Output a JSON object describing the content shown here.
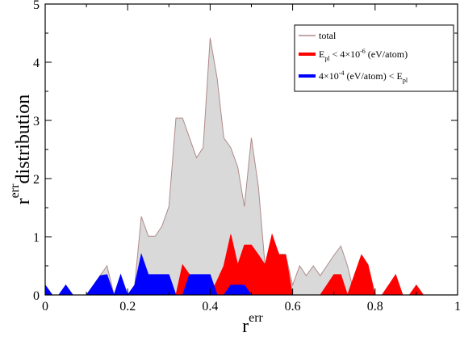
{
  "chart_data": {
    "type": "area",
    "xlabel": "r",
    "xlabel_sup": "err",
    "ylabel_main": "distribution",
    "ylabel_r": "r",
    "ylabel_sup": "err",
    "xlim": [
      0,
      1
    ],
    "ylim": [
      0,
      5
    ],
    "xticks": [
      "0",
      "0.2",
      "0.4",
      "0.6",
      "0.8",
      "1"
    ],
    "yticks": [
      "0",
      "1",
      "2",
      "3",
      "4",
      "5"
    ],
    "grid": false,
    "legend_position": "top-right",
    "legend": [
      {
        "id": "total",
        "parts": [
          {
            "t": "total",
            "s": "normal"
          }
        ]
      },
      {
        "id": "red",
        "parts": [
          {
            "t": "E",
            "s": "normal"
          },
          {
            "t": "pl",
            "s": "sub"
          },
          {
            "t": " < 4×10",
            "s": "normal"
          },
          {
            "t": "-6",
            "s": "sup"
          },
          {
            "t": " (eV/atom)",
            "s": "normal"
          }
        ]
      },
      {
        "id": "blue",
        "parts": [
          {
            "t": "4×10",
            "s": "normal"
          },
          {
            "t": "-4",
            "s": "sup"
          },
          {
            "t": " (eV/atom) < E",
            "s": "normal"
          },
          {
            "t": "pl",
            "s": "sub"
          }
        ]
      }
    ],
    "colors": {
      "total_fill": "#d9d9d9",
      "total_line": "#b08a8a",
      "red": "#ff0000",
      "blue": "#0000ff"
    },
    "series": [
      {
        "id": "total",
        "x": [
          0,
          0.017,
          0.033,
          0.05,
          0.067,
          0.083,
          0.1,
          0.117,
          0.133,
          0.15,
          0.167,
          0.183,
          0.2,
          0.217,
          0.233,
          0.25,
          0.267,
          0.283,
          0.3,
          0.317,
          0.333,
          0.35,
          0.367,
          0.383,
          0.4,
          0.417,
          0.433,
          0.45,
          0.467,
          0.483,
          0.5,
          0.517,
          0.533,
          0.55,
          0.567,
          0.583,
          0.6,
          0.617,
          0.633,
          0.65,
          0.667,
          0.683,
          0.7,
          0.717,
          0.733,
          0.75,
          0.767,
          0.783,
          0.8,
          0.817,
          0.833,
          0.85,
          0.867,
          0.883,
          0.9,
          0.917,
          0.933,
          0.95,
          0.967,
          0.983,
          1
        ],
        "values": [
          0.17,
          0,
          0,
          0.17,
          0,
          0,
          0,
          0.17,
          0.33,
          0.5,
          0,
          0.33,
          0,
          0.17,
          1.35,
          1.01,
          1.01,
          1.18,
          1.52,
          3.04,
          3.04,
          2.7,
          2.36,
          2.53,
          4.42,
          3.72,
          2.7,
          2.53,
          2.2,
          1.52,
          2.7,
          1.86,
          0.5,
          1.0,
          0.7,
          0.7,
          0.17,
          0.5,
          0.33,
          0.5,
          0.33,
          0.5,
          0.68,
          0.84,
          0.5,
          0,
          0,
          0.17,
          0,
          0,
          0.17,
          0,
          0,
          0,
          0,
          0,
          0,
          0,
          0,
          0,
          0
        ]
      },
      {
        "id": "red",
        "x": [
          0.3,
          0.317,
          0.333,
          0.35,
          0.367,
          0.383,
          0.4,
          0.417,
          0.433,
          0.45,
          0.467,
          0.483,
          0.5,
          0.517,
          0.533,
          0.55,
          0.567,
          0.583,
          0.6,
          0.617,
          0.633,
          0.65,
          0.667,
          0.683,
          0.7,
          0.717,
          0.733,
          0.75,
          0.767,
          0.783,
          0.8,
          0.817,
          0.833,
          0.85,
          0.867,
          0.883,
          0.9,
          0.917,
          0.933,
          0.95,
          0.967
        ],
        "values": [
          0,
          0,
          0.52,
          0.35,
          0,
          0,
          0,
          0.25,
          0.5,
          1.04,
          0.52,
          0.86,
          0.86,
          0.69,
          0.52,
          1.04,
          0.69,
          0.69,
          0,
          0,
          0,
          0,
          0,
          0.17,
          0.35,
          0.35,
          0,
          0.35,
          0.69,
          0.52,
          0,
          0,
          0.17,
          0.35,
          0,
          0,
          0.17,
          0,
          0,
          0,
          0
        ]
      },
      {
        "id": "blue",
        "x": [
          0,
          0.017,
          0.033,
          0.05,
          0.067,
          0.083,
          0.1,
          0.117,
          0.133,
          0.15,
          0.167,
          0.183,
          0.2,
          0.217,
          0.233,
          0.25,
          0.267,
          0.283,
          0.3,
          0.317,
          0.333,
          0.35,
          0.367,
          0.383,
          0.4,
          0.417,
          0.433,
          0.45,
          0.467,
          0.483,
          0.5,
          0.517,
          0.533
        ],
        "values": [
          0.17,
          0,
          0,
          0.17,
          0,
          0,
          0,
          0.17,
          0.33,
          0.35,
          0,
          0.35,
          0,
          0.17,
          0.7,
          0.35,
          0.35,
          0.35,
          0.35,
          0,
          0,
          0.35,
          0.35,
          0.35,
          0.35,
          0,
          0,
          0.17,
          0.17,
          0.17,
          0,
          0,
          0
        ]
      }
    ]
  }
}
